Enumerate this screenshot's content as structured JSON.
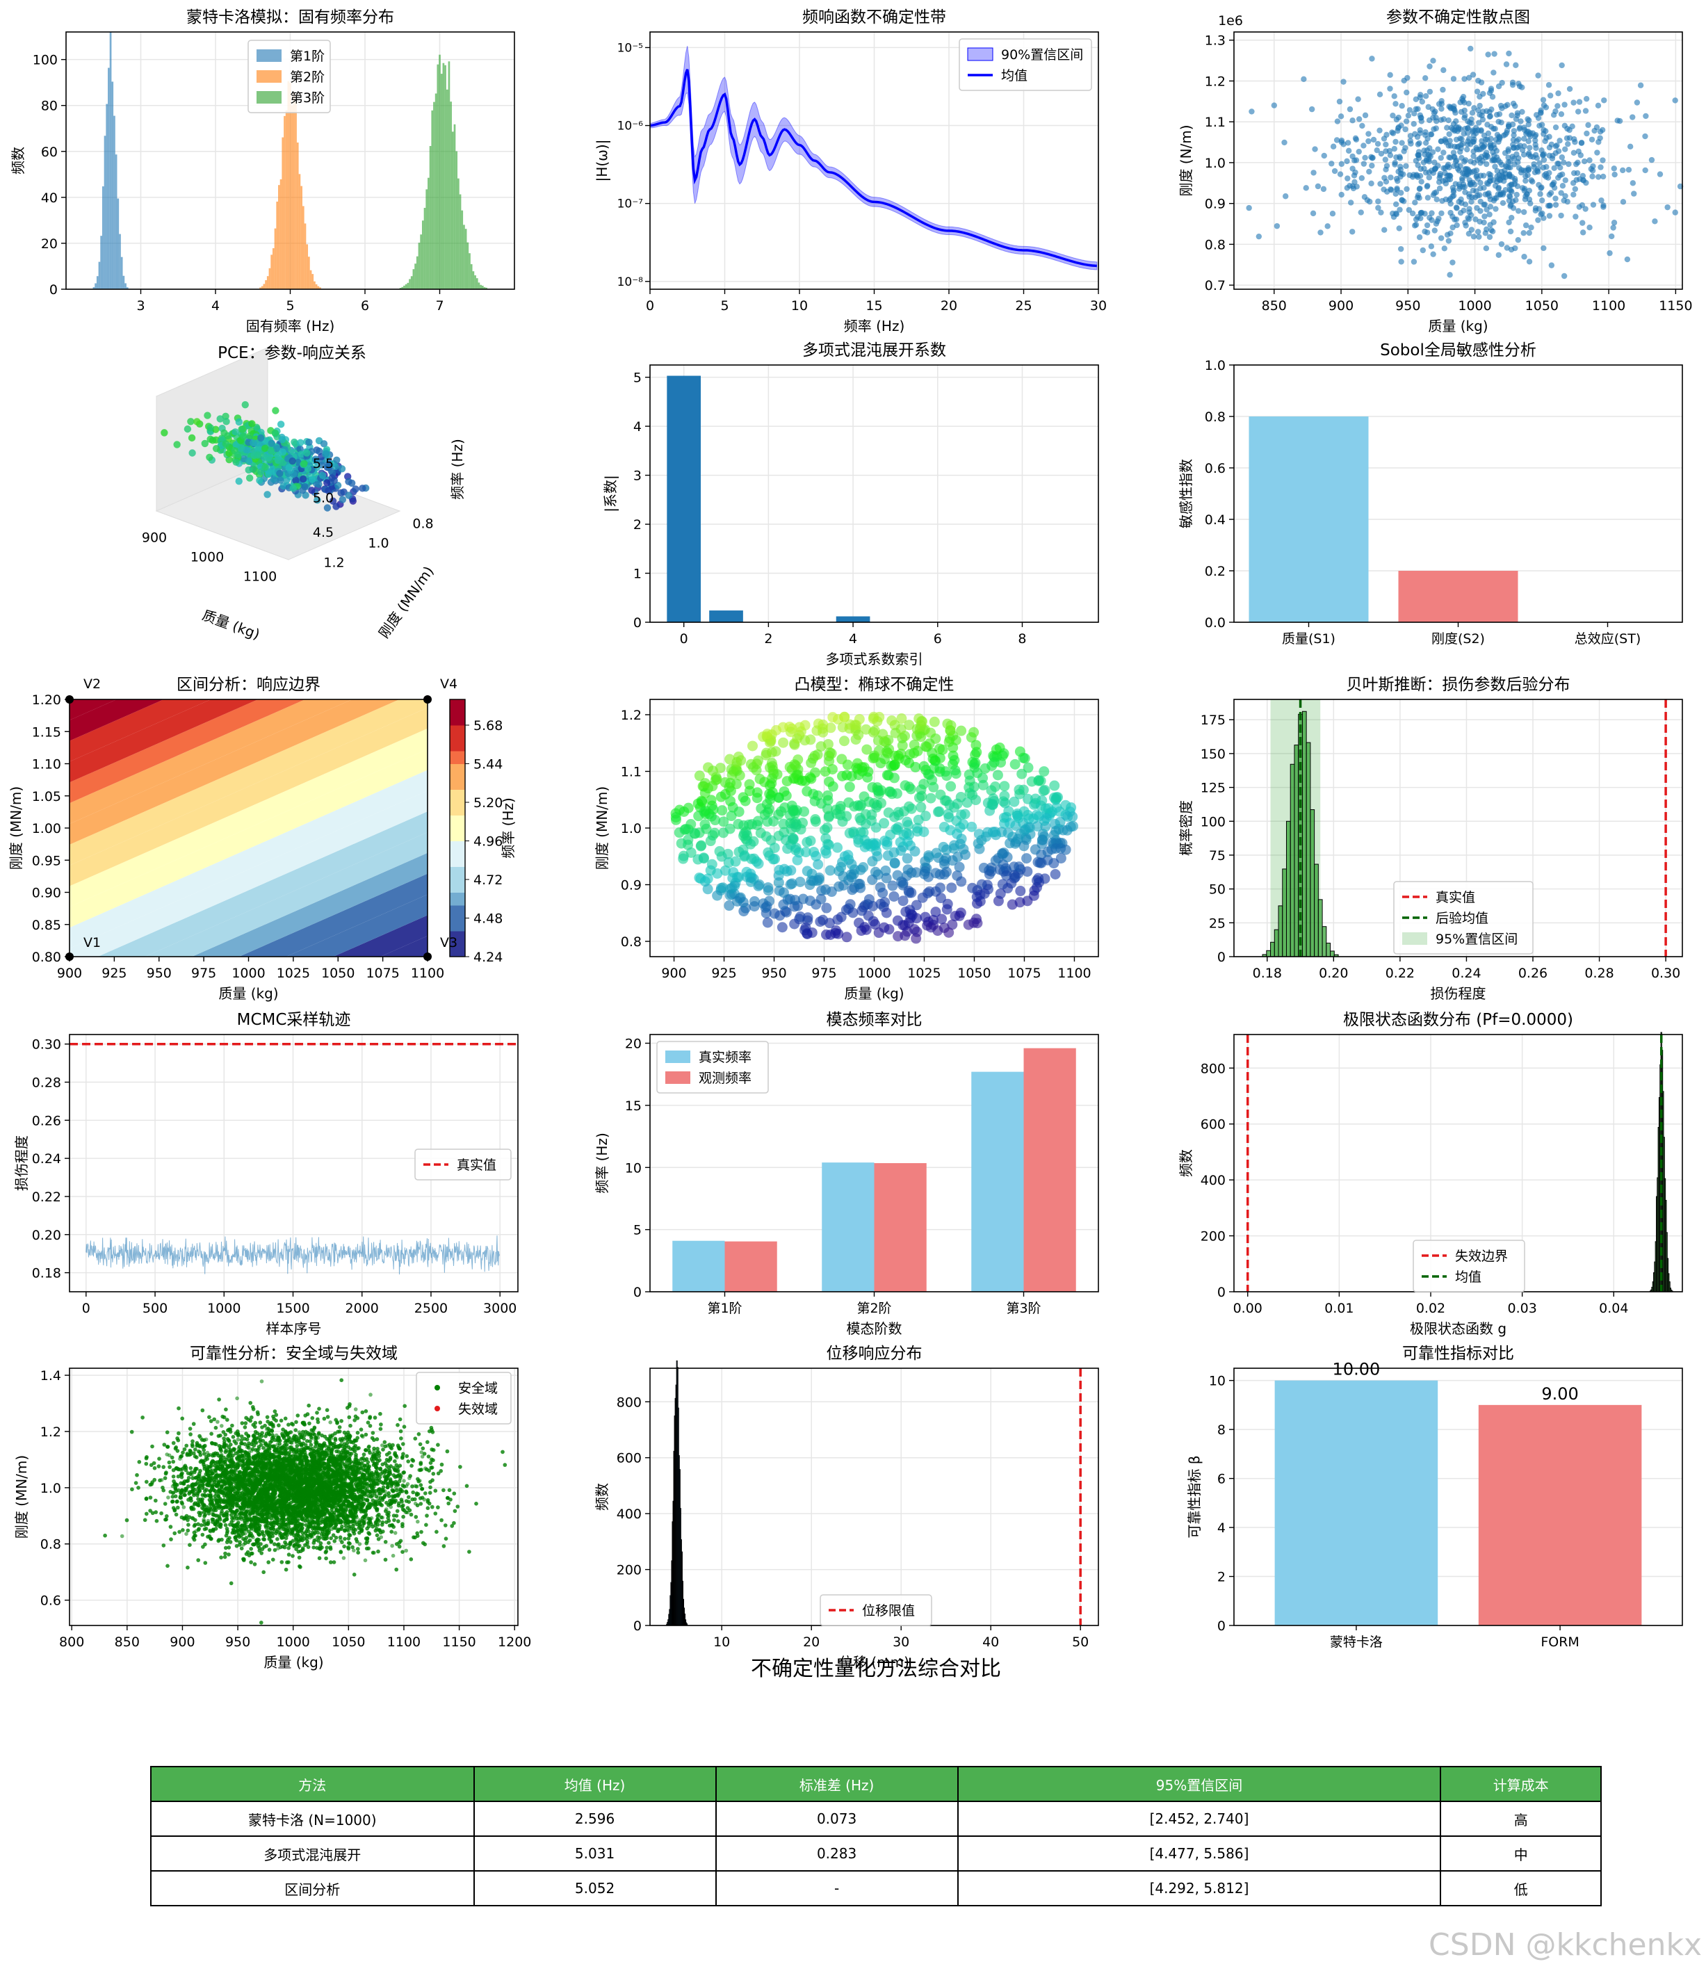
{
  "colors": {
    "blue": "#1f77b4",
    "orange": "#ff7f0e",
    "green": "#2ca02c",
    "skyblue": "#87ceeb",
    "lightcoral": "#f08080",
    "red": "#e31a1c",
    "darkgreen": "#006400",
    "grid": "#e6e6e6"
  },
  "chart_data": [
    {
      "id": "mc_hist",
      "type": "bar",
      "title": "蒙特卡洛模拟：固有频率分布",
      "xlabel": "固有频率 (Hz)",
      "ylabel": "频数",
      "xlim": [
        2.0,
        8.0
      ],
      "ylim": [
        0,
        112
      ],
      "xticks": [
        3,
        4,
        5,
        6,
        7
      ],
      "yticks": [
        0,
        20,
        40,
        60,
        80,
        100
      ],
      "legend_position": "top-center",
      "series": [
        {
          "name": "第1阶",
          "color": "#1f77b4",
          "mean": 2.596,
          "std": 0.073,
          "peak": 104
        },
        {
          "name": "第2阶",
          "color": "#ff7f0e",
          "mean": 5.0,
          "std": 0.13,
          "peak": 86
        },
        {
          "name": "第3阶",
          "color": "#2ca02c",
          "mean": 7.05,
          "std": 0.18,
          "peak": 99
        }
      ]
    },
    {
      "id": "frf",
      "type": "line",
      "title": "频响函数不确定性带",
      "xlabel": "频率 (Hz)",
      "ylabel": "|H(ω)|",
      "xlim": [
        0,
        30
      ],
      "ylim_log10": [
        -8.1,
        -4.8
      ],
      "yscale": "log",
      "xticks": [
        0,
        5,
        10,
        15,
        20,
        25,
        30
      ],
      "yticks": [
        "10⁻⁵",
        "10⁻⁶",
        "10⁻⁷",
        "10⁻⁸"
      ],
      "legend_position": "top-right",
      "series": [
        {
          "name": "90%置信区间",
          "type": "band"
        },
        {
          "name": "均值",
          "type": "line"
        }
      ],
      "x": [
        0,
        1,
        2,
        2.5,
        3,
        3.5,
        4,
        5,
        5.5,
        6,
        7,
        7.5,
        8,
        9,
        10,
        11,
        12,
        15,
        20,
        25,
        30
      ],
      "mean_log10": [
        -6.0,
        -5.96,
        -5.75,
        -5.28,
        -6.7,
        -6.3,
        -6.05,
        -5.6,
        -6.15,
        -6.5,
        -5.92,
        -6.15,
        -6.38,
        -6.05,
        -6.25,
        -6.45,
        -6.6,
        -6.98,
        -7.35,
        -7.6,
        -7.8
      ],
      "band_half_log10": [
        0.03,
        0.04,
        0.12,
        0.3,
        0.3,
        0.25,
        0.2,
        0.22,
        0.25,
        0.25,
        0.22,
        0.2,
        0.2,
        0.15,
        0.12,
        0.08,
        0.07,
        0.06,
        0.05,
        0.05,
        0.05
      ]
    },
    {
      "id": "param_scatter",
      "type": "scatter",
      "title": "参数不确定性散点图",
      "xlabel": "质量 (kg)",
      "ylabel": "刚度 (N/m)",
      "offset_text": "1e6",
      "xlim": [
        820,
        1155
      ],
      "ylim": [
        0.69,
        1.32
      ],
      "xticks": [
        850,
        900,
        950,
        1000,
        1050,
        1100,
        1150
      ],
      "yticks": [
        0.7,
        0.8,
        0.9,
        1.0,
        1.1,
        1.2,
        1.3
      ],
      "x_mean": 1000,
      "x_std": 50,
      "y_mean": 1.0,
      "y_std": 0.1,
      "n": 1000
    },
    {
      "id": "pce_3d",
      "type": "scatter",
      "title": "PCE：参数-响应关系",
      "xlabel": "质量 (kg)",
      "ylabel": "刚度 (MN/m)",
      "zlabel": "频率 (Hz)",
      "xticks": [
        900,
        1000,
        1100
      ],
      "yticks": [
        0.8,
        1.0,
        1.2
      ],
      "zticks": [
        4.5,
        5.0,
        5.5
      ],
      "n": 500
    },
    {
      "id": "pce_coef",
      "type": "bar",
      "title": "多项式混沌展开系数",
      "xlabel": "多项式系数索引",
      "ylabel": "|系数|",
      "xlim": [
        -0.8,
        9.8
      ],
      "ylim": [
        0,
        5.25
      ],
      "xticks": [
        0,
        2,
        4,
        6,
        8
      ],
      "yticks": [
        0,
        1,
        2,
        3,
        4,
        5
      ],
      "categories": [
        0,
        1,
        2,
        3,
        4,
        5,
        6,
        7,
        8,
        9
      ],
      "values": [
        5.03,
        0.24,
        0.0,
        0.0,
        0.12,
        0.0,
        0.0,
        0.0,
        0.0,
        0.0
      ]
    },
    {
      "id": "sobol",
      "type": "bar",
      "title": "Sobol全局敏感性分析",
      "ylabel": "敏感性指数",
      "ylim": [
        0,
        1.0
      ],
      "yticks": [
        0.0,
        0.2,
        0.4,
        0.6,
        0.8,
        1.0
      ],
      "categories": [
        "质量(S1)",
        "刚度(S2)",
        "总效应(ST)"
      ],
      "values": [
        0.8,
        0.2,
        0.0
      ],
      "colors": [
        "#87ceeb",
        "#f08080",
        "#90ee90"
      ]
    },
    {
      "id": "interval",
      "type": "heatmap",
      "title": "区间分析：响应边界",
      "xlabel": "质量 (kg)",
      "ylabel": "刚度 (MN/m)",
      "colorbar_label": "频率 (Hz)",
      "xlim": [
        900,
        1100
      ],
      "ylim": [
        0.8,
        1.2
      ],
      "xticks": [
        900,
        925,
        950,
        975,
        1000,
        1025,
        1050,
        1075,
        1100
      ],
      "yticks": [
        0.8,
        0.85,
        0.9,
        0.95,
        1.0,
        1.05,
        1.1,
        1.15,
        1.2
      ],
      "zlim": [
        4.24,
        5.84
      ],
      "colorbar_ticks": [
        4.24,
        4.48,
        4.72,
        4.96,
        5.2,
        5.44,
        5.68
      ],
      "vertices": [
        {
          "label": "V1",
          "x": 900,
          "y": 0.8
        },
        {
          "label": "V2",
          "x": 900,
          "y": 1.2
        },
        {
          "label": "V3",
          "x": 1100,
          "y": 0.8
        },
        {
          "label": "V4",
          "x": 1100,
          "y": 1.2
        }
      ]
    },
    {
      "id": "convex",
      "type": "scatter",
      "title": "凸模型：椭球不确定性",
      "xlabel": "质量 (kg)",
      "ylabel": "刚度 (MN/m)",
      "xlim": [
        888,
        1112
      ],
      "ylim": [
        0.773,
        1.227
      ],
      "xticks": [
        900,
        925,
        950,
        975,
        1000,
        1025,
        1050,
        1075,
        1100
      ],
      "yticks": [
        0.8,
        0.9,
        1.0,
        1.1,
        1.2
      ],
      "center": [
        1000,
        1.0
      ],
      "radii": [
        100,
        0.2
      ],
      "n": 1000
    },
    {
      "id": "bayes",
      "type": "bar",
      "title": "贝叶斯推断：损伤参数后验分布",
      "xlabel": "损伤程度",
      "ylabel": "概率密度",
      "xlim": [
        0.17,
        0.305
      ],
      "ylim": [
        0,
        190
      ],
      "xticks": [
        0.18,
        0.2,
        0.22,
        0.24,
        0.26,
        0.28,
        0.3
      ],
      "yticks": [
        0,
        25,
        50,
        75,
        100,
        125,
        150,
        175
      ],
      "true_value": 0.3,
      "posterior_mean": 0.19,
      "ci95": [
        0.181,
        0.196
      ],
      "peak": 182,
      "std": 0.0035,
      "legend_position": "lower-center",
      "legend": [
        "真实值",
        "后验均值",
        "95%置信区间"
      ]
    },
    {
      "id": "mcmc",
      "type": "line",
      "title": "MCMC采样轨迹",
      "xlabel": "样本序号",
      "ylabel": "损伤程度",
      "xlim": [
        -120,
        3130
      ],
      "ylim": [
        0.17,
        0.305
      ],
      "xticks": [
        0,
        500,
        1000,
        1500,
        2000,
        2500,
        3000
      ],
      "yticks": [
        0.18,
        0.2,
        0.22,
        0.24,
        0.26,
        0.28,
        0.3
      ],
      "true_value": 0.3,
      "n": 3000,
      "mean": 0.19,
      "std": 0.0035,
      "legend": [
        "真实值"
      ],
      "legend_position": "center-right"
    },
    {
      "id": "modal",
      "type": "bar",
      "title": "模态频率对比",
      "xlabel": "模态阶数",
      "ylabel": "频率 (Hz)",
      "ylim": [
        0,
        20.7
      ],
      "yticks": [
        0,
        5,
        10,
        15,
        20
      ],
      "categories": [
        "第1阶",
        "第2阶",
        "第3阶"
      ],
      "series": [
        {
          "name": "真实频率",
          "color": "#87ceeb",
          "values": [
            4.1,
            10.4,
            17.7
          ]
        },
        {
          "name": "观测频率",
          "color": "#f08080",
          "values": [
            4.05,
            10.35,
            19.6
          ]
        }
      ],
      "legend_position": "top-left"
    },
    {
      "id": "limit_state",
      "type": "bar",
      "title": "极限状态函数分布 (Pf=0.0000)",
      "xlabel": "极限状态函数 g",
      "ylabel": "频数",
      "xlim": [
        -0.0015,
        0.0475
      ],
      "ylim": [
        0,
        920
      ],
      "xticks": [
        0.0,
        0.01,
        0.02,
        0.03,
        0.04
      ],
      "yticks": [
        0,
        200,
        400,
        600,
        800
      ],
      "failure_boundary": 0.0,
      "mean": 0.0452,
      "std": 0.00035,
      "peak": 880,
      "legend": [
        "失效边界",
        "均值"
      ],
      "legend_position": "lower-center"
    },
    {
      "id": "reliability_scatter",
      "type": "scatter",
      "title": "可靠性分析：安全域与失效域",
      "xlabel": "质量 (kg)",
      "ylabel": "刚度 (MN/m)",
      "xlim": [
        798,
        1203
      ],
      "ylim": [
        0.51,
        1.425
      ],
      "xticks": [
        800,
        850,
        900,
        950,
        1000,
        1050,
        1100,
        1150,
        1200
      ],
      "yticks": [
        0.6,
        0.8,
        1.0,
        1.2,
        1.4
      ],
      "x_mean": 1000,
      "x_std": 50,
      "y_mean": 1.0,
      "y_std": 0.1,
      "n": 10000,
      "legend": [
        "安全域",
        "失效域"
      ],
      "legend_position": "top-right"
    },
    {
      "id": "displacement",
      "type": "bar",
      "title": "位移响应分布",
      "xlabel": "位移 (mm)",
      "ylabel": "频数",
      "xlim": [
        2,
        52
      ],
      "ylim": [
        0,
        920
      ],
      "xticks": [
        10,
        20,
        30,
        40,
        50
      ],
      "yticks": [
        0,
        200,
        400,
        600,
        800
      ],
      "limit": 50,
      "mean": 5.0,
      "std": 0.35,
      "peak": 870,
      "legend": [
        "位移限值"
      ],
      "legend_position": "lower-center"
    },
    {
      "id": "beta",
      "type": "bar",
      "title": "可靠性指标对比",
      "ylabel": "可靠性指标 β",
      "ylim": [
        0,
        10.5
      ],
      "yticks": [
        0,
        2,
        4,
        6,
        8,
        10
      ],
      "categories": [
        "蒙特卡洛",
        "FORM"
      ],
      "values": [
        10.0,
        9.0
      ],
      "labels": [
        "10.00",
        "9.00"
      ],
      "colors": [
        "#87ceeb",
        "#f08080"
      ]
    }
  ],
  "summary_table": {
    "title": "不确定性量化方法综合对比",
    "headers": [
      "方法",
      "均值 (Hz)",
      "标准差 (Hz)",
      "95%置信区间",
      "计算成本"
    ],
    "rows": [
      [
        "蒙特卡洛 (N=1000)",
        "2.596",
        "0.073",
        "[2.452, 2.740]",
        "高"
      ],
      [
        "多项式混沌展开",
        "5.031",
        "0.283",
        "[4.477, 5.586]",
        "中"
      ],
      [
        "区间分析",
        "5.052",
        "-",
        "[4.292, 5.812]",
        "低"
      ]
    ]
  },
  "watermark": "CSDN @kkchenkx"
}
